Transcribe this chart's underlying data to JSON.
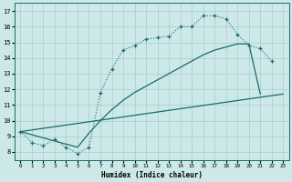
{
  "xlabel": "Humidex (Indice chaleur)",
  "bg_color": "#cde8e8",
  "grid_color": "#aacccc",
  "line_color": "#1a6b6b",
  "xlim": [
    -0.5,
    23.5
  ],
  "ylim": [
    7.5,
    17.5
  ],
  "xticks": [
    0,
    1,
    2,
    3,
    4,
    5,
    6,
    7,
    8,
    9,
    10,
    11,
    12,
    13,
    14,
    15,
    16,
    17,
    18,
    19,
    20,
    21,
    22,
    23
  ],
  "yticks": [
    8,
    9,
    10,
    11,
    12,
    13,
    14,
    15,
    16,
    17
  ],
  "curve1_x": [
    0,
    1,
    2,
    3,
    4,
    5,
    6,
    7,
    8,
    9,
    10,
    11,
    12,
    13,
    14,
    15,
    16,
    17,
    18,
    19,
    20,
    21,
    22
  ],
  "curve1_y": [
    9.3,
    8.6,
    8.4,
    8.8,
    8.3,
    7.9,
    8.3,
    11.8,
    13.3,
    14.5,
    14.8,
    15.2,
    15.3,
    15.4,
    16.0,
    16.0,
    16.7,
    16.7,
    16.5,
    15.5,
    14.8,
    14.6,
    13.8
  ],
  "curve2_x": [
    0,
    5,
    6,
    7,
    8,
    9,
    10,
    11,
    12,
    13,
    14,
    15,
    16,
    17,
    18,
    19,
    20,
    21
  ],
  "curve2_y": [
    9.3,
    8.3,
    9.2,
    10.0,
    10.7,
    11.3,
    11.8,
    12.2,
    12.6,
    13.0,
    13.4,
    13.8,
    14.2,
    14.5,
    14.7,
    14.9,
    14.9,
    11.7
  ],
  "curve3_x": [
    0,
    23
  ],
  "curve3_y": [
    9.3,
    11.7
  ]
}
